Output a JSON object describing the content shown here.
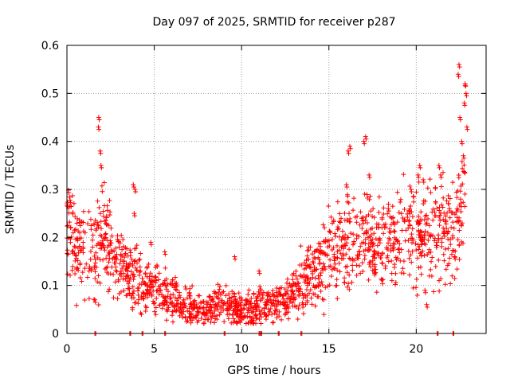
{
  "chart_data": {
    "type": "scatter",
    "title": "Day 097 of 2025, SRMTID for receiver p287",
    "xlabel": "GPS time / hours",
    "ylabel": "SRMTID / TECUs",
    "xlim": [
      0,
      24
    ],
    "ylim": [
      0,
      0.6
    ],
    "xticks": [
      0,
      5,
      10,
      15,
      20
    ],
    "xtick_labels": [
      "0",
      "5",
      "10",
      "15",
      "20"
    ],
    "yticks": [
      0,
      0.1,
      0.2,
      0.3,
      0.4,
      0.5,
      0.6
    ],
    "ytick_labels": [
      "0",
      "0.1",
      "0.2",
      "0.3",
      "0.4",
      "0.5",
      "0.6"
    ],
    "grid": true,
    "marker": "+",
    "color": "#ff0000",
    "series": [
      {
        "name": "SRMTID",
        "trend": [
          [
            0.0,
            0.22
          ],
          [
            0.5,
            0.19
          ],
          [
            1.0,
            0.17
          ],
          [
            1.5,
            0.18
          ],
          [
            2.0,
            0.2
          ],
          [
            2.5,
            0.18
          ],
          [
            3.0,
            0.15
          ],
          [
            3.5,
            0.12
          ],
          [
            4.0,
            0.11
          ],
          [
            4.5,
            0.1
          ],
          [
            5.0,
            0.1
          ],
          [
            5.5,
            0.08
          ],
          [
            6.0,
            0.07
          ],
          [
            6.5,
            0.06
          ],
          [
            7.0,
            0.055
          ],
          [
            7.5,
            0.05
          ],
          [
            8.0,
            0.05
          ],
          [
            8.5,
            0.06
          ],
          [
            9.0,
            0.06
          ],
          [
            9.5,
            0.05
          ],
          [
            10.0,
            0.05
          ],
          [
            10.5,
            0.05
          ],
          [
            11.0,
            0.06
          ],
          [
            11.5,
            0.06
          ],
          [
            12.0,
            0.06
          ],
          [
            12.5,
            0.07
          ],
          [
            13.0,
            0.09
          ],
          [
            13.5,
            0.11
          ],
          [
            14.0,
            0.12
          ],
          [
            14.5,
            0.13
          ],
          [
            15.0,
            0.16
          ],
          [
            15.5,
            0.17
          ],
          [
            16.0,
            0.18
          ],
          [
            16.5,
            0.18
          ],
          [
            17.0,
            0.2
          ],
          [
            17.5,
            0.19
          ],
          [
            18.0,
            0.19
          ],
          [
            18.5,
            0.19
          ],
          [
            19.0,
            0.2
          ],
          [
            19.5,
            0.21
          ],
          [
            20.0,
            0.22
          ],
          [
            20.5,
            0.21
          ],
          [
            21.0,
            0.2
          ],
          [
            21.5,
            0.21
          ],
          [
            22.0,
            0.21
          ],
          [
            22.5,
            0.25
          ],
          [
            22.8,
            0.32
          ]
        ],
        "peaks": [
          [
            0.0,
            0.27
          ],
          [
            1.6,
            0.07
          ],
          [
            1.8,
            0.43
          ],
          [
            1.82,
            0.45
          ],
          [
            1.9,
            0.38
          ],
          [
            1.95,
            0.35
          ],
          [
            3.8,
            0.31
          ],
          [
            3.9,
            0.3
          ],
          [
            3.85,
            0.25
          ],
          [
            4.8,
            0.19
          ],
          [
            5.6,
            0.17
          ],
          [
            9.6,
            0.16
          ],
          [
            11.0,
            0.13
          ],
          [
            16.0,
            0.31
          ],
          [
            16.1,
            0.38
          ],
          [
            16.2,
            0.39
          ],
          [
            17.0,
            0.4
          ],
          [
            17.1,
            0.41
          ],
          [
            17.3,
            0.33
          ],
          [
            18.4,
            0.26
          ],
          [
            19.7,
            0.3
          ],
          [
            20.1,
            0.33
          ],
          [
            20.2,
            0.35
          ],
          [
            20.4,
            0.32
          ],
          [
            20.5,
            0.09
          ],
          [
            20.6,
            0.06
          ],
          [
            21.3,
            0.35
          ],
          [
            21.4,
            0.33
          ],
          [
            21.9,
            0.26
          ],
          [
            22.2,
            0.16
          ],
          [
            22.4,
            0.54
          ],
          [
            22.45,
            0.56
          ],
          [
            22.5,
            0.45
          ],
          [
            22.6,
            0.4
          ],
          [
            22.7,
            0.37
          ],
          [
            22.8,
            0.52
          ],
          [
            22.85,
            0.5
          ],
          [
            22.75,
            0.48
          ],
          [
            22.9,
            0.43
          ]
        ],
        "zeros": [
          1.6,
          3.6,
          4.3,
          5.6,
          9.0,
          11.0,
          11.1,
          12.1,
          13.4,
          21.2,
          22.1
        ]
      }
    ]
  }
}
